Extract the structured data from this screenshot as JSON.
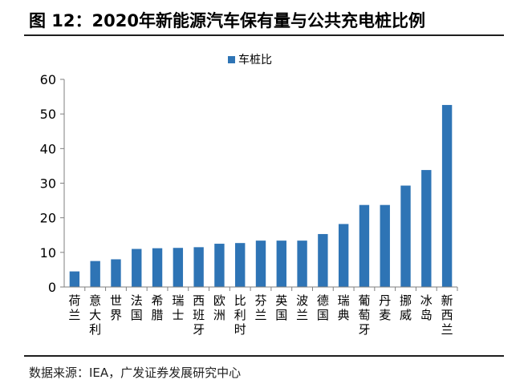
{
  "figure": {
    "title": "图 12：2020年新能源汽车保有量与公共充电桩比例",
    "source": "数据来源：IEA，广发证券发展研究中心"
  },
  "chart_data": {
    "type": "bar",
    "categories": [
      "荷兰",
      "意大利",
      "世界",
      "法国",
      "希腊",
      "瑞士",
      "西班牙",
      "欧洲",
      "比利时",
      "芬兰",
      "英国",
      "波兰",
      "德国",
      "瑞典",
      "葡萄牙",
      "丹麦",
      "挪威",
      "冰岛",
      "新西兰"
    ],
    "series": [
      {
        "name": "车桩比",
        "values": [
          4.5,
          7.5,
          8.0,
          11.0,
          11.2,
          11.3,
          11.5,
          12.5,
          12.7,
          13.4,
          13.4,
          13.4,
          15.3,
          18.2,
          23.7,
          23.7,
          29.3,
          33.8,
          52.6
        ],
        "color": "#2e74b5"
      }
    ],
    "ylim": [
      0,
      60
    ],
    "yticks": [
      0,
      10,
      20,
      30,
      40,
      50,
      60
    ],
    "legend_position": "top-center",
    "grid": false
  }
}
